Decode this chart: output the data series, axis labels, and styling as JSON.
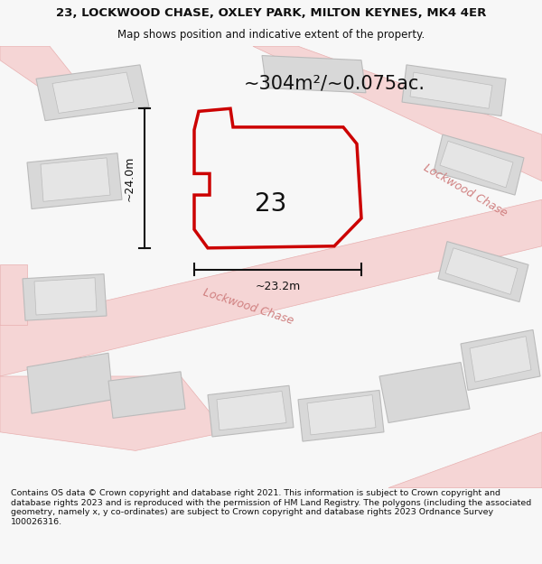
{
  "title_line1": "23, LOCKWOOD CHASE, OXLEY PARK, MILTON KEYNES, MK4 4ER",
  "title_line2": "Map shows position and indicative extent of the property.",
  "area_text": "~304m²/~0.075ac.",
  "label_23": "23",
  "dim_height": "~24.0m",
  "dim_width": "~23.2m",
  "road_label_lower": "Lockwood Chase",
  "road_label_upper": "Lockwood Chase",
  "footer": "Contains OS data © Crown copyright and database right 2021. This information is subject to Crown copyright and database rights 2023 and is reproduced with the permission of HM Land Registry. The polygons (including the associated geometry, namely x, y co-ordinates) are subject to Crown copyright and database rights 2023 Ordnance Survey 100026316.",
  "bg_color": "#f7f7f7",
  "map_bg": "#eeebeb",
  "road_color": "#f5d5d5",
  "road_stroke": "#e8b0b0",
  "building_fill": "#d8d8d8",
  "building_stroke": "#bbbbbb",
  "plot_fill": "#f7f7f7",
  "plot_stroke": "#cc0000",
  "dim_line_color": "#111111",
  "text_color": "#111111",
  "road_text_color": "#d08080"
}
